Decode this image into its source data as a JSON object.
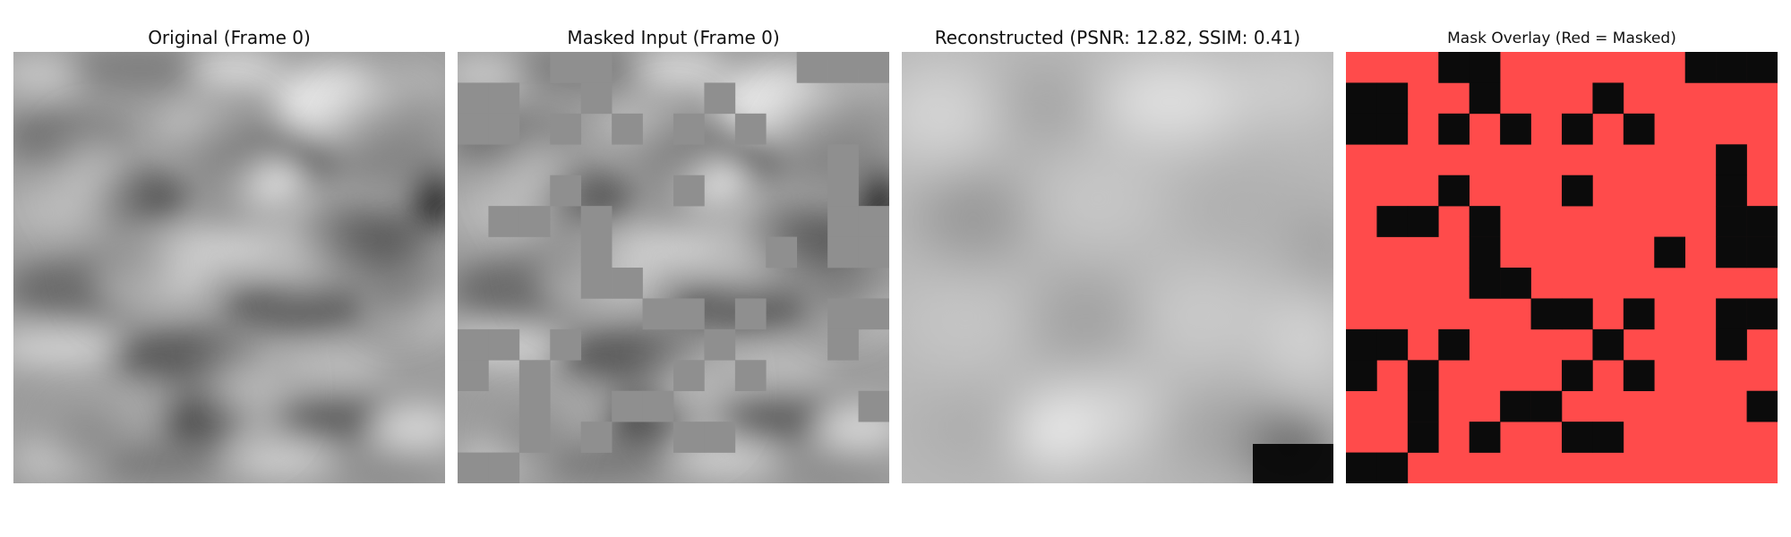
{
  "figure": {
    "panels": [
      {
        "title": "Original (Frame 0)"
      },
      {
        "title": "Masked Input (Frame 0)"
      },
      {
        "title": "Reconstructed (PSNR: 12.82, SSIM: 0.41)"
      },
      {
        "title": "Mask Overlay (Red = Masked)"
      }
    ],
    "colors": {
      "mask_red": "#ff4b4b",
      "mask_fill_gray": "#8f8f8f",
      "dark": "#0b0b0b"
    },
    "metrics": {
      "psnr": 12.82,
      "ssim": 0.41
    }
  }
}
